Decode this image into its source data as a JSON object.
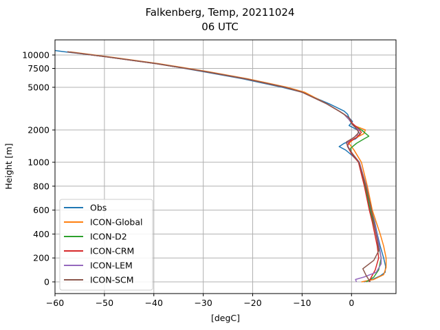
{
  "chart_data": {
    "type": "line",
    "title": "Falkenberg, Temp, 20211024",
    "subtitle": "06 UTC",
    "xlabel": "[degC]",
    "ylabel": "Height [m]",
    "xlim": [
      -60,
      9
    ],
    "xticks": [
      -60,
      -50,
      -40,
      -30,
      -20,
      -10,
      0
    ],
    "yticks": [
      0,
      200,
      400,
      600,
      800,
      1000,
      2000,
      5000,
      7500,
      10000
    ],
    "y_scale": "piecewise: linear 0-1000 m, logarithmic above 1000 m",
    "grid": true,
    "legend_position": "lower-left",
    "series": [
      {
        "name": "Obs",
        "color": "#1f77b4",
        "points": [
          [
            2.5,
            0
          ],
          [
            4.2,
            20
          ],
          [
            5.8,
            50
          ],
          [
            6.8,
            80
          ],
          [
            6.9,
            130
          ],
          [
            6.5,
            200
          ],
          [
            5.8,
            300
          ],
          [
            5.2,
            400
          ],
          [
            4.7,
            500
          ],
          [
            4.0,
            600
          ],
          [
            3.0,
            800
          ],
          [
            1.5,
            1000
          ],
          [
            0.2,
            1150
          ],
          [
            -1.2,
            1300
          ],
          [
            -2.5,
            1400
          ],
          [
            -1.5,
            1500
          ],
          [
            0.8,
            1650
          ],
          [
            1.8,
            1800
          ],
          [
            1.2,
            2000
          ],
          [
            -0.5,
            2200
          ],
          [
            0.2,
            2400
          ],
          [
            -0.5,
            2600
          ],
          [
            -0.8,
            2800
          ],
          [
            -1.5,
            3000
          ],
          [
            -4.5,
            3500
          ],
          [
            -10,
            4500
          ],
          [
            -14,
            5000
          ],
          [
            -22,
            6000
          ],
          [
            -30,
            7000
          ],
          [
            -40,
            8400
          ],
          [
            -50,
            9700
          ],
          [
            -58,
            10700
          ],
          [
            -60,
            11000
          ]
        ]
      },
      {
        "name": "ICON-Global",
        "color": "#ff7f0e",
        "points": [
          [
            2.0,
            0
          ],
          [
            4.5,
            20
          ],
          [
            6.5,
            60
          ],
          [
            7.0,
            120
          ],
          [
            7.0,
            200
          ],
          [
            6.5,
            300
          ],
          [
            5.8,
            400
          ],
          [
            5.0,
            500
          ],
          [
            4.2,
            600
          ],
          [
            3.2,
            800
          ],
          [
            2.0,
            1000
          ],
          [
            0.5,
            1300
          ],
          [
            -0.5,
            1500
          ],
          [
            0.5,
            1650
          ],
          [
            2.5,
            1850
          ],
          [
            2.8,
            2000
          ],
          [
            0.5,
            2200
          ],
          [
            -0.5,
            2500
          ],
          [
            -1.5,
            2800
          ],
          [
            -2.5,
            3000
          ],
          [
            -5,
            3500
          ],
          [
            -9.5,
            4500
          ],
          [
            -13,
            5000
          ],
          [
            -21,
            6000
          ],
          [
            -29,
            7000
          ],
          [
            -39,
            8300
          ],
          [
            -49,
            9600
          ],
          [
            -57,
            10700
          ]
        ]
      },
      {
        "name": "ICON-D2",
        "color": "#2ca02c",
        "points": [
          [
            3.0,
            0
          ],
          [
            4.5,
            40
          ],
          [
            5.5,
            100
          ],
          [
            6.0,
            200
          ],
          [
            5.5,
            300
          ],
          [
            5.0,
            400
          ],
          [
            4.4,
            500
          ],
          [
            3.8,
            600
          ],
          [
            2.8,
            800
          ],
          [
            1.5,
            1000
          ],
          [
            0,
            1200
          ],
          [
            -0.2,
            1350
          ],
          [
            1.0,
            1500
          ],
          [
            2.5,
            1650
          ],
          [
            3.5,
            1750
          ],
          [
            2.0,
            2000
          ],
          [
            0.5,
            2200
          ],
          [
            -0.5,
            2500
          ],
          [
            -1.5,
            2800
          ],
          [
            -2.5,
            3000
          ],
          [
            -5,
            3500
          ],
          [
            -10,
            4500
          ],
          [
            -13.5,
            5000
          ],
          [
            -21.5,
            6000
          ],
          [
            -29.5,
            7000
          ],
          [
            -39.5,
            8300
          ],
          [
            -49.5,
            9600
          ],
          [
            -57.5,
            10700
          ]
        ]
      },
      {
        "name": "ICON-CRM",
        "color": "#d62728",
        "points": [
          [
            3.5,
            0
          ],
          [
            4.0,
            40
          ],
          [
            4.8,
            100
          ],
          [
            5.5,
            200
          ],
          [
            5.2,
            300
          ],
          [
            4.7,
            400
          ],
          [
            4.2,
            500
          ],
          [
            3.6,
            600
          ],
          [
            2.6,
            800
          ],
          [
            1.4,
            1000
          ],
          [
            0,
            1200
          ],
          [
            -0.8,
            1400
          ],
          [
            -0.5,
            1550
          ],
          [
            1.0,
            1700
          ],
          [
            2.0,
            1900
          ],
          [
            1.2,
            2100
          ],
          [
            0.2,
            2300
          ],
          [
            -0.5,
            2600
          ],
          [
            -1.5,
            2800
          ],
          [
            -2.5,
            3000
          ],
          [
            -5,
            3500
          ],
          [
            -10,
            4500
          ],
          [
            -13.5,
            5000
          ],
          [
            -21.5,
            6000
          ],
          [
            -29.5,
            7000
          ],
          [
            -39.5,
            8300
          ],
          [
            -49.5,
            9600
          ],
          [
            -57.5,
            10700
          ]
        ]
      },
      {
        "name": "ICON-LEM",
        "color": "#9467bd",
        "points": [
          [
            1.0,
            0
          ],
          [
            0.8,
            20
          ],
          [
            2.5,
            40
          ],
          [
            5.0,
            80
          ],
          [
            6.0,
            150
          ],
          [
            6.0,
            200
          ],
          [
            5.6,
            300
          ],
          [
            5.1,
            400
          ],
          [
            4.6,
            500
          ],
          [
            4.0,
            600
          ],
          [
            3.0,
            800
          ],
          [
            1.6,
            1000
          ],
          [
            0.2,
            1200
          ],
          [
            -0.5,
            1350
          ],
          [
            -1.0,
            1500
          ],
          [
            0,
            1650
          ],
          [
            1.2,
            1800
          ],
          [
            1.5,
            2000
          ],
          [
            0.3,
            2200
          ],
          [
            -0.5,
            2500
          ],
          [
            -1.5,
            2800
          ],
          [
            -2.5,
            3000
          ],
          [
            -5,
            3500
          ],
          [
            -10,
            4500
          ],
          [
            -13.5,
            5000
          ],
          [
            -21.5,
            6000
          ],
          [
            -29.5,
            7000
          ],
          [
            -39.5,
            8300
          ],
          [
            -49.5,
            9600
          ],
          [
            -57.5,
            10700
          ]
        ]
      },
      {
        "name": "ICON-SCM",
        "color": "#8c564b",
        "points": [
          [
            3.8,
            0
          ],
          [
            3.0,
            50
          ],
          [
            2.3,
            110
          ],
          [
            4.5,
            180
          ],
          [
            5.5,
            260
          ],
          [
            5.2,
            350
          ],
          [
            4.7,
            450
          ],
          [
            4.3,
            550
          ],
          [
            3.8,
            650
          ],
          [
            2.9,
            800
          ],
          [
            1.5,
            1000
          ],
          [
            0.2,
            1200
          ],
          [
            -0.8,
            1400
          ],
          [
            -1.0,
            1550
          ],
          [
            0.5,
            1700
          ],
          [
            1.5,
            1900
          ],
          [
            0.8,
            2100
          ],
          [
            0,
            2300
          ],
          [
            -0.5,
            2600
          ],
          [
            -1.5,
            2800
          ],
          [
            -2.5,
            3000
          ],
          [
            -5,
            3500
          ],
          [
            -10,
            4500
          ],
          [
            -13.5,
            5000
          ],
          [
            -21.5,
            6000
          ],
          [
            -29.5,
            7000
          ],
          [
            -39.5,
            8300
          ],
          [
            -49.5,
            9600
          ],
          [
            -57.5,
            10700
          ]
        ]
      }
    ]
  },
  "colors": {
    "grid": "#b0b0b0",
    "axis": "#000000"
  }
}
